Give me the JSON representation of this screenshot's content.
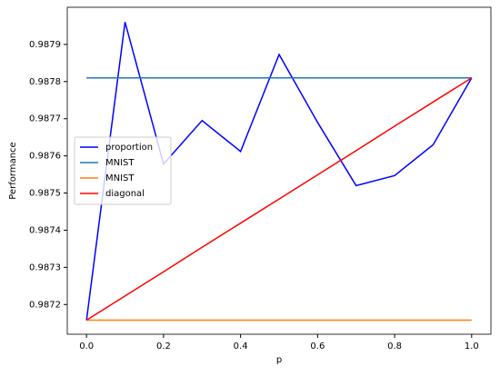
{
  "chart_data": {
    "type": "line",
    "xlabel": "p",
    "ylabel": "Performance",
    "x": [
      0.0,
      0.1,
      0.2,
      0.3,
      0.4,
      0.5,
      0.6,
      0.7,
      0.8,
      0.9,
      1.0
    ],
    "series": [
      {
        "name": "proportion",
        "color": "#0000ff",
        "values": [
          0.987158,
          0.98796,
          0.987578,
          0.987695,
          0.987612,
          0.987873,
          0.98769,
          0.98752,
          0.987547,
          0.98763,
          0.98781
        ]
      },
      {
        "name": "MNIST",
        "color": "#1f77b4",
        "values": [
          0.98781,
          0.98781,
          0.98781,
          0.98781,
          0.98781,
          0.98781,
          0.98781,
          0.98781,
          0.98781,
          0.98781,
          0.98781
        ]
      },
      {
        "name": "MNIST",
        "color": "#ff7f0e",
        "values": [
          0.987158,
          0.987158,
          0.987158,
          0.987158,
          0.987158,
          0.987158,
          0.987158,
          0.987158,
          0.987158,
          0.987158,
          0.987158
        ]
      },
      {
        "name": "diagonal",
        "color": "#ff0000",
        "values": [
          0.987158,
          0.987223,
          0.987288,
          0.987354,
          0.987419,
          0.987484,
          0.987549,
          0.987614,
          0.98768,
          0.987745,
          0.98781
        ]
      }
    ],
    "xlim": [
      -0.05,
      1.05
    ],
    "xticks": [
      {
        "value": 0,
        "label": "0.0"
      },
      0.2,
      0.4,
      0.6,
      0.8,
      {
        "value": 1,
        "label": "1.0"
      }
    ],
    "ylim": [
      0.98712,
      0.988
    ],
    "yticks": [
      0.9872,
      0.9873,
      0.9874,
      0.9875,
      0.9876,
      0.9877,
      0.9878,
      0.9879
    ],
    "legend": "center left"
  }
}
